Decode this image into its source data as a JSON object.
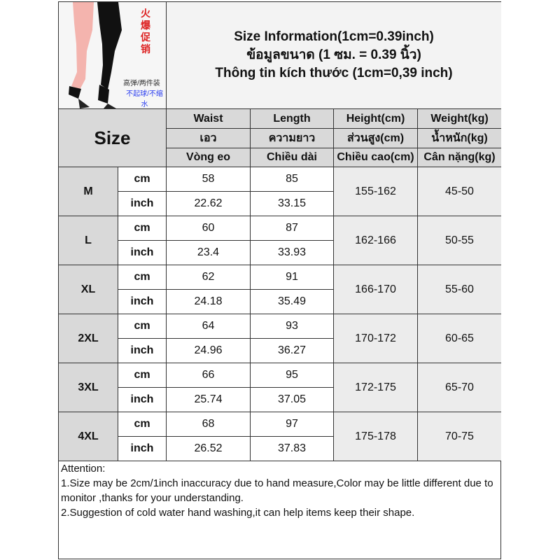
{
  "photo": {
    "promo_red": "火爆促销",
    "caption_1": "高弹/两件装",
    "caption_2": "不起球/不缩水"
  },
  "title": {
    "line_en": "Size Information(1cm=0.39inch)",
    "line_th": "ข้อมูลขนาด (1 ซม. = 0.39 นิ้ว)",
    "line_vi": "Thông tin kích thước (1cm=0,39 inch)"
  },
  "header": {
    "size_label": "Size",
    "columns": [
      {
        "en": "Waist",
        "th": "เอว",
        "vi": "Vòng eo"
      },
      {
        "en": "Length",
        "th": "ความยาว",
        "vi": "Chiều dài"
      },
      {
        "en": "Height(cm)",
        "th": "ส่วนสูง(cm)",
        "vi": "Chiều cao(cm)"
      },
      {
        "en": "Weight(kg)",
        "th": "น้ำหนัก(kg)",
        "vi": "Cân nặng(kg)"
      }
    ]
  },
  "units": {
    "cm": "cm",
    "inch": "inch"
  },
  "rows": [
    {
      "size": "M",
      "waist_cm": "58",
      "waist_in": "22.62",
      "length_cm": "85",
      "length_in": "33.15",
      "height": "155-162",
      "weight": "45-50"
    },
    {
      "size": "L",
      "waist_cm": "60",
      "waist_in": "23.4",
      "length_cm": "87",
      "length_in": "33.93",
      "height": "162-166",
      "weight": "50-55"
    },
    {
      "size": "XL",
      "waist_cm": "62",
      "waist_in": "24.18",
      "length_cm": "91",
      "length_in": "35.49",
      "height": "166-170",
      "weight": "55-60"
    },
    {
      "size": "2XL",
      "waist_cm": "64",
      "waist_in": "24.96",
      "length_cm": "93",
      "length_in": "36.27",
      "height": "170-172",
      "weight": "60-65"
    },
    {
      "size": "3XL",
      "waist_cm": "66",
      "waist_in": "25.74",
      "length_cm": "95",
      "length_in": "37.05",
      "height": "172-175",
      "weight": "65-70"
    },
    {
      "size": "4XL",
      "waist_cm": "68",
      "waist_in": "26.52",
      "length_cm": "97",
      "length_in": "37.83",
      "height": "175-178",
      "weight": "70-75"
    }
  ],
  "attention": {
    "heading": "Attention:",
    "note_1": "1.Size may be 2cm/1inch inaccuracy due to hand measure,Color may be little different due to monitor ,thanks for your understanding.",
    "note_2": "2.Suggestion of cold water hand washing,it can help items keep their shape."
  }
}
